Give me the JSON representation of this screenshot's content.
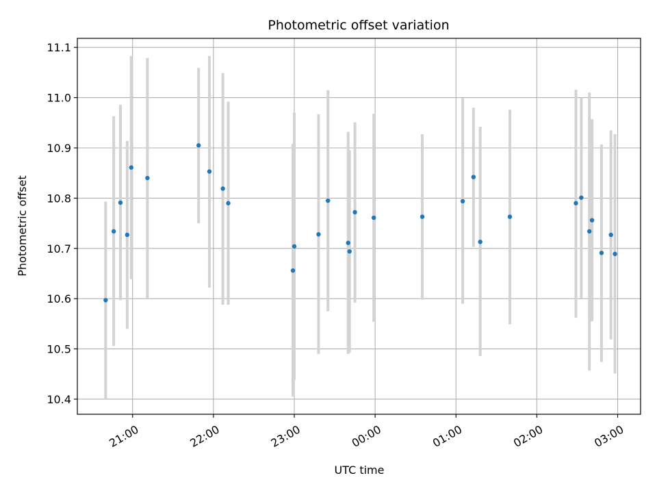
{
  "chart_data": {
    "type": "scatter",
    "title": "Photometric offset variation",
    "xlabel": "UTC time",
    "ylabel": "Photometric offset",
    "x_tick_labels": [
      "21:00",
      "22:00",
      "23:00",
      "00:00",
      "01:00",
      "02:00",
      "03:00"
    ],
    "y_tick_labels": [
      "10.4",
      "10.5",
      "10.6",
      "10.7",
      "10.8",
      "10.9",
      "11.0",
      "11.1"
    ],
    "xlim": [
      "2000-01-01T20:19:00",
      "2000-01-02T03:17:00"
    ],
    "ylim": [
      10.37,
      11.118
    ],
    "grid": true,
    "colors": {
      "point": "#1f77b4",
      "errorbar": "#d3d3d3",
      "grid": "#b0b0b0"
    },
    "points": [
      {
        "x": "2000-01-01T20:40:00",
        "y": 10.597,
        "ylow": 10.4,
        "yhigh": 10.793
      },
      {
        "x": "2000-01-01T20:46:00",
        "y": 10.734,
        "ylow": 10.506,
        "yhigh": 10.963
      },
      {
        "x": "2000-01-01T20:51:00",
        "y": 10.791,
        "ylow": 10.597,
        "yhigh": 10.986
      },
      {
        "x": "2000-01-01T20:56:00",
        "y": 10.727,
        "ylow": 10.54,
        "yhigh": 10.914
      },
      {
        "x": "2000-01-01T20:59:00",
        "y": 10.861,
        "ylow": 10.639,
        "yhigh": 11.083
      },
      {
        "x": "2000-01-01T21:11:00",
        "y": 10.84,
        "ylow": 10.6,
        "yhigh": 11.079
      },
      {
        "x": "2000-01-01T21:49:00",
        "y": 10.905,
        "ylow": 10.75,
        "yhigh": 11.059
      },
      {
        "x": "2000-01-01T21:57:00",
        "y": 10.853,
        "ylow": 10.622,
        "yhigh": 11.083
      },
      {
        "x": "2000-01-01T22:07:00",
        "y": 10.819,
        "ylow": 10.588,
        "yhigh": 11.049
      },
      {
        "x": "2000-01-01T22:11:00",
        "y": 10.79,
        "ylow": 10.588,
        "yhigh": 10.992
      },
      {
        "x": "2000-01-01T22:59:00",
        "y": 10.656,
        "ylow": 10.405,
        "yhigh": 10.908
      },
      {
        "x": "2000-01-01T23:00:00",
        "y": 10.704,
        "ylow": 10.438,
        "yhigh": 10.97
      },
      {
        "x": "2000-01-01T23:18:00",
        "y": 10.728,
        "ylow": 10.49,
        "yhigh": 10.967
      },
      {
        "x": "2000-01-01T23:25:00",
        "y": 10.795,
        "ylow": 10.575,
        "yhigh": 11.015
      },
      {
        "x": "2000-01-01T23:40:00",
        "y": 10.711,
        "ylow": 10.49,
        "yhigh": 10.932
      },
      {
        "x": "2000-01-01T23:41:00",
        "y": 10.694,
        "ylow": 10.493,
        "yhigh": 10.895
      },
      {
        "x": "2000-01-01T23:45:00",
        "y": 10.772,
        "ylow": 10.592,
        "yhigh": 10.951
      },
      {
        "x": "2000-01-01T23:59:00",
        "y": 10.761,
        "ylow": 10.554,
        "yhigh": 10.968
      },
      {
        "x": "2000-01-02T00:35:00",
        "y": 10.763,
        "ylow": 10.598,
        "yhigh": 10.927
      },
      {
        "x": "2000-01-02T01:05:00",
        "y": 10.794,
        "ylow": 10.59,
        "yhigh": 10.999
      },
      {
        "x": "2000-01-02T01:13:00",
        "y": 10.842,
        "ylow": 10.703,
        "yhigh": 10.98
      },
      {
        "x": "2000-01-02T01:18:00",
        "y": 10.713,
        "ylow": 10.486,
        "yhigh": 10.942
      },
      {
        "x": "2000-01-02T01:40:00",
        "y": 10.763,
        "ylow": 10.549,
        "yhigh": 10.976
      },
      {
        "x": "2000-01-02T02:29:00",
        "y": 10.79,
        "ylow": 10.562,
        "yhigh": 11.016
      },
      {
        "x": "2000-01-02T02:33:00",
        "y": 10.801,
        "ylow": 10.601,
        "yhigh": 11.0
      },
      {
        "x": "2000-01-02T02:39:00",
        "y": 10.734,
        "ylow": 10.457,
        "yhigh": 11.01
      },
      {
        "x": "2000-01-02T02:41:00",
        "y": 10.756,
        "ylow": 10.555,
        "yhigh": 10.957
      },
      {
        "x": "2000-01-02T02:48:00",
        "y": 10.691,
        "ylow": 10.474,
        "yhigh": 10.907
      },
      {
        "x": "2000-01-02T02:55:00",
        "y": 10.727,
        "ylow": 10.519,
        "yhigh": 10.935
      },
      {
        "x": "2000-01-02T02:58:00",
        "y": 10.689,
        "ylow": 10.451,
        "yhigh": 10.927
      }
    ]
  }
}
